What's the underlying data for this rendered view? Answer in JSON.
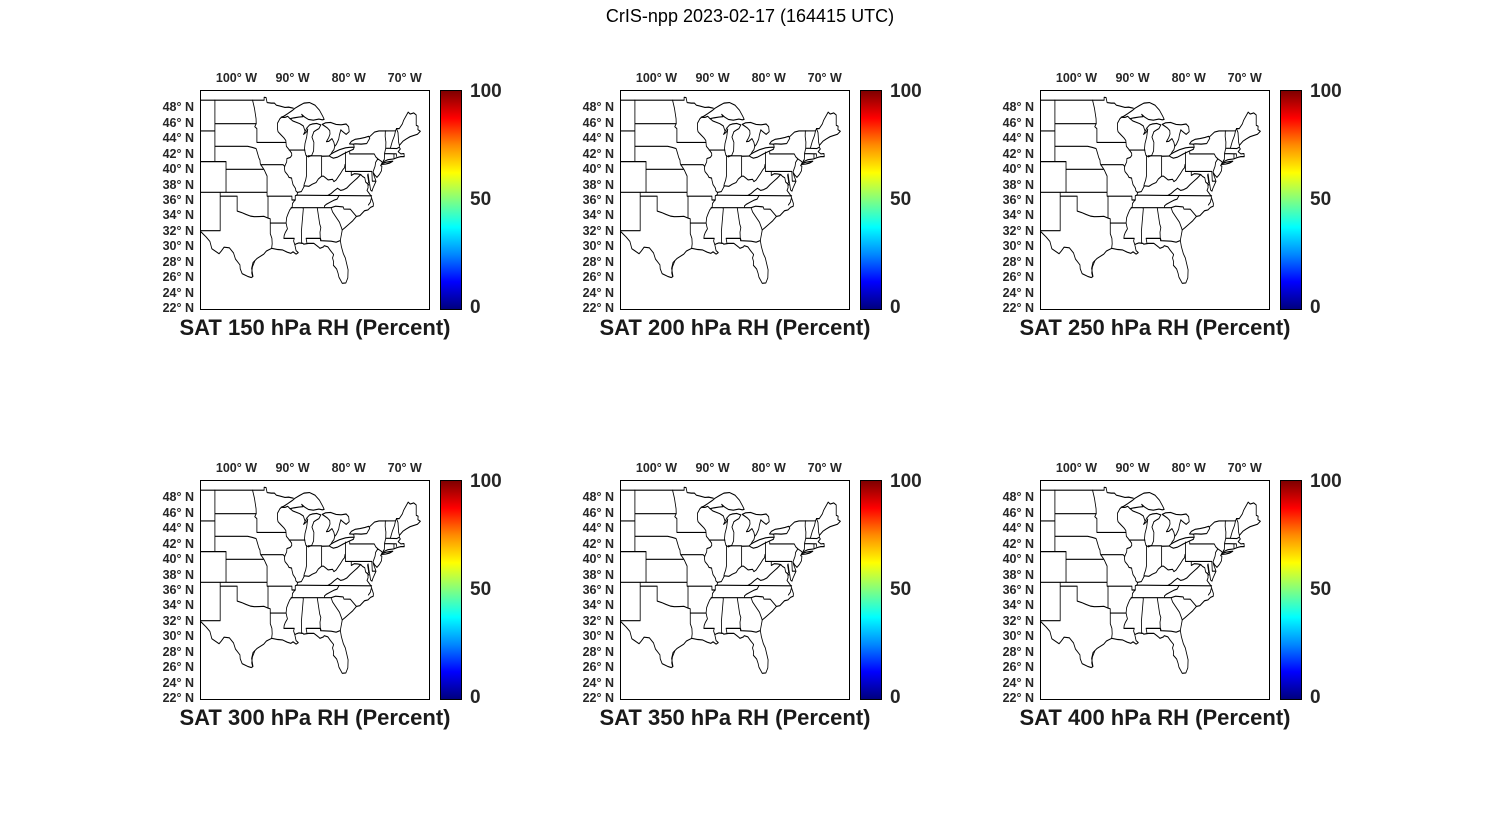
{
  "figure_title": "CrIS-npp 2023-02-17 (164415 UTC)",
  "panels": [
    {
      "subtitle": "SAT 150 hPa RH (Percent)"
    },
    {
      "subtitle": "SAT 200 hPa RH (Percent)"
    },
    {
      "subtitle": "SAT 250 hPa RH (Percent)"
    },
    {
      "subtitle": "SAT 300 hPa RH (Percent)"
    },
    {
      "subtitle": "SAT 350 hPa RH (Percent)"
    },
    {
      "subtitle": "SAT 400 hPa RH (Percent)"
    }
  ],
  "axes": {
    "lon_tick_labels": [
      "100° W",
      "90° W",
      "80° W",
      "70° W"
    ],
    "lat_tick_labels": [
      "48° N",
      "46° N",
      "44° N",
      "42° N",
      "40° N",
      "38° N",
      "36° N",
      "34° N",
      "32° N",
      "30° N",
      "28° N",
      "26° N",
      "24° N",
      "22° N"
    ]
  },
  "colorbar": {
    "tick_labels": {
      "max": "100",
      "mid": "50",
      "min": "0"
    },
    "jet_stops": [
      "#7f0000",
      "#ff0000",
      "#ff8c00",
      "#ffff00",
      "#80ff80",
      "#00ffff",
      "#0088ff",
      "#0000ff",
      "#00007f"
    ]
  },
  "chart_data": {
    "type": "heatmap",
    "title": "CrIS-npp 2023-02-17 (164415 UTC)",
    "panels": [
      {
        "label": "SAT 150 hPa RH (Percent)",
        "pressure_hPa": 150
      },
      {
        "label": "SAT 200 hPa RH (Percent)",
        "pressure_hPa": 200
      },
      {
        "label": "SAT 250 hPa RH (Percent)",
        "pressure_hPa": 250
      },
      {
        "label": "SAT 300 hPa RH (Percent)",
        "pressure_hPa": 300
      },
      {
        "label": "SAT 350 hPa RH (Percent)",
        "pressure_hPa": 350
      },
      {
        "label": "SAT 400 hPa RH (Percent)",
        "pressure_hPa": 400
      }
    ],
    "variable": "RH (Percent)",
    "colorbar": {
      "min": 0,
      "max": 100,
      "ticks": [
        0,
        50,
        100
      ],
      "colormap": "jet"
    },
    "x_axis": {
      "tick_values_deg_w": [
        100,
        90,
        80,
        70
      ],
      "range_deg_w": [
        106.5,
        65.5
      ]
    },
    "y_axis": {
      "tick_values_deg_n": [
        48,
        46,
        44,
        42,
        40,
        38,
        36,
        34,
        32,
        30,
        28,
        26,
        24,
        22
      ],
      "range_deg_n": [
        21.8,
        50.2
      ]
    },
    "plotted_values": "none visible (blank US state-outline base maps in all six panels)",
    "layout": {
      "rows": 2,
      "cols": 3,
      "grid": false,
      "colorbar_position": "right of each panel"
    }
  }
}
